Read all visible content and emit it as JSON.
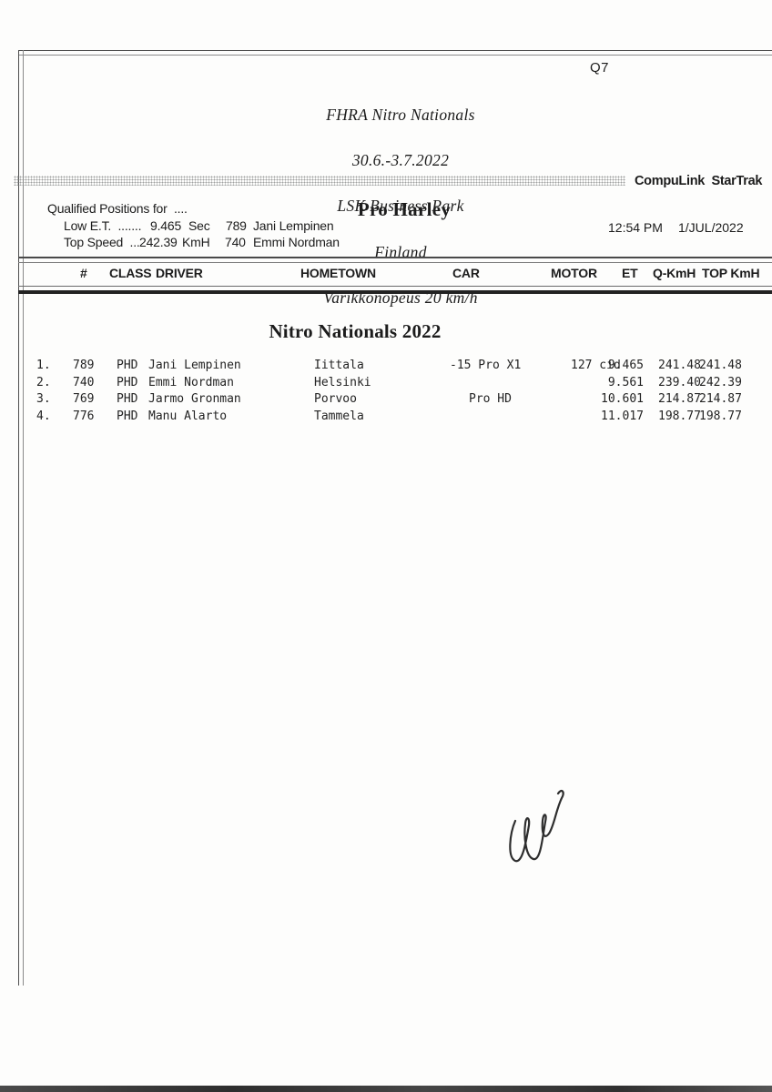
{
  "page": {
    "q_label": "Q7"
  },
  "event_header": {
    "lines": [
      "FHRA Nitro Nationals",
      "30.6.-3.7.2022",
      "LSK Business Park",
      "Finland",
      "Varikkonopeus 20 km/h"
    ]
  },
  "brand": "CompuLink  StarTrak",
  "qualified": {
    "title": "Qualified Positions for  ....",
    "rows": [
      {
        "label": "Low E.T.  .......",
        "value": "9.465",
        "unit": "Sec",
        "num": "789",
        "driver": "Jani Lempinen"
      },
      {
        "label": "Top Speed  ...",
        "value": "242.39",
        "unit": "KmH",
        "num": "740",
        "driver": "Emmi Nordman"
      }
    ]
  },
  "category_title": "Pro Harley",
  "timestamp": {
    "time": "12:54 PM",
    "date": "1/JUL/2022"
  },
  "table": {
    "columns": [
      "#",
      "CLASS",
      "DRIVER",
      "HOMETOWN",
      "CAR",
      "MOTOR",
      "ET",
      "Q-KmH",
      "TOP KmH"
    ],
    "section_title": "Nitro Nationals 2022",
    "rows": [
      {
        "pos": "1.",
        "num": "789",
        "class": "PHD",
        "driver": "Jani Lempinen",
        "hometown": "Iittala",
        "car": "-15 Pro X1",
        "motor": "127 cid",
        "et": "9.465",
        "qkmh": "241.48",
        "topkmh": "241.48"
      },
      {
        "pos": "2.",
        "num": "740",
        "class": "PHD",
        "driver": "Emmi Nordman",
        "hometown": "Helsinki",
        "car": "",
        "motor": "",
        "et": "9.561",
        "qkmh": "239.40",
        "topkmh": "242.39"
      },
      {
        "pos": "3.",
        "num": "769",
        "class": "PHD",
        "driver": "Jarmo Gronman",
        "hometown": "Porvoo",
        "car": "Pro HD",
        "motor": "",
        "et": "10.601",
        "qkmh": "214.87",
        "topkmh": "214.87"
      },
      {
        "pos": "4.",
        "num": "776",
        "class": "PHD",
        "driver": "Manu Alarto",
        "hometown": "Tammela",
        "car": "",
        "motor": "",
        "et": "11.017",
        "qkmh": "198.77",
        "topkmh": "198.77"
      }
    ]
  }
}
